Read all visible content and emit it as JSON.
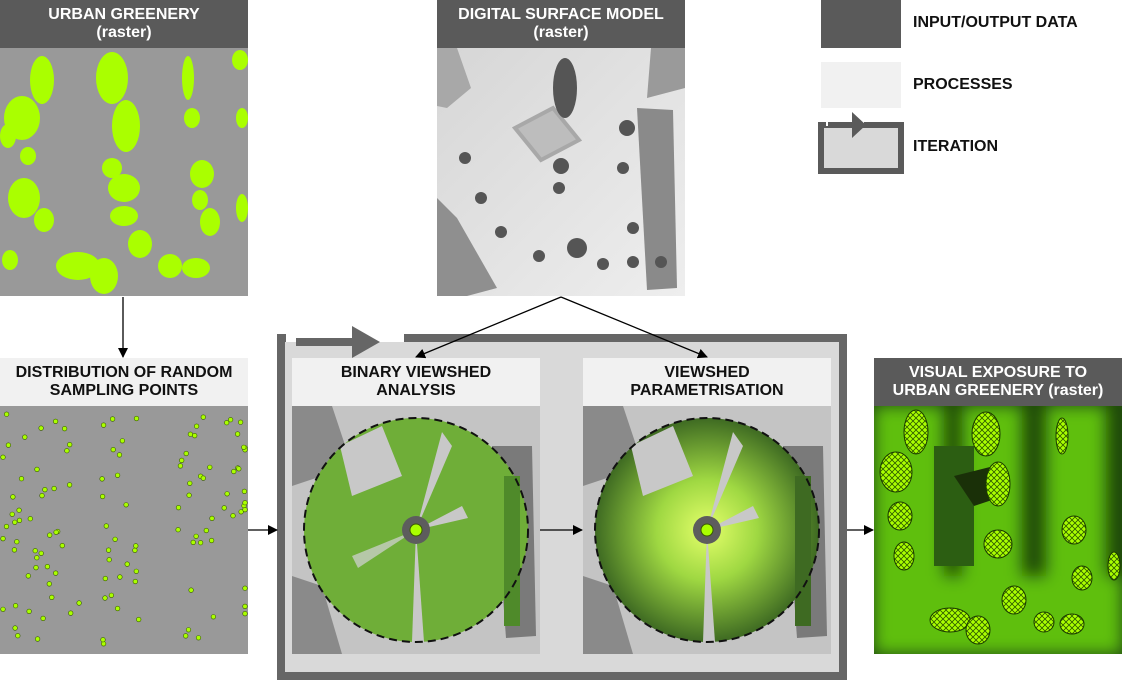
{
  "inputs": {
    "urban_greenery": {
      "line1": "URBAN GREENERY",
      "line2": "(raster)"
    },
    "dsm": {
      "line1": "DIGITAL SURFACE MODEL",
      "line2": "(raster)"
    }
  },
  "processes": {
    "sampling": {
      "line1": "DISTRIBUTION OF RANDOM",
      "line2": "SAMPLING POINTS"
    },
    "binary_viewshed": {
      "line1": "BINARY VIEWSHED",
      "line2": "ANALYSIS"
    },
    "parametrisation": {
      "line1": "VIEWSHED",
      "line2": "PARAMETRISATION"
    }
  },
  "output": {
    "line1": "VISUAL EXPOSURE TO",
    "line2": "URBAN GREENERY (raster)"
  },
  "legend": {
    "items": [
      {
        "label": "INPUT/OUTPUT DATA",
        "color": "#5a5a5a"
      },
      {
        "label": "PROCESSES",
        "color": "#f1f1f1"
      },
      {
        "label": "ITERATION",
        "color": "#d9d9d9"
      }
    ]
  },
  "colors": {
    "green": "#aaff00",
    "raster_grey": "#999999",
    "frame": "#666666"
  }
}
